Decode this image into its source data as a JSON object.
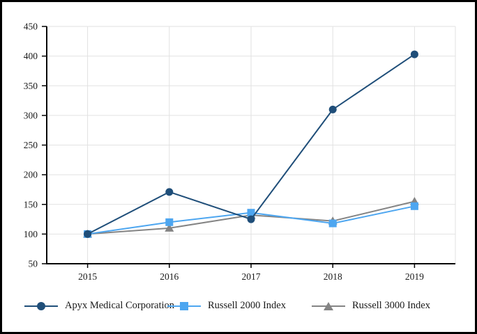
{
  "figure": {
    "background_color": "#ffffff",
    "border_color": "#000000",
    "text_color": "#1a1a1a",
    "gridline_color": "#e2e2e2",
    "axis_color": "#000000"
  },
  "chart_data": {
    "type": "line",
    "title": "",
    "categories": [
      "2015",
      "2016",
      "2017",
      "2018",
      "2019"
    ],
    "series": [
      {
        "name": "Apyx Medical Corporation",
        "marker": "circle",
        "color": "#1f4e79",
        "values": [
          100,
          171,
          125,
          310,
          403
        ]
      },
      {
        "name": "Russell 2000 Index",
        "marker": "square",
        "color": "#4da6f0",
        "values": [
          100,
          120,
          136,
          118,
          147
        ]
      },
      {
        "name": "Russell 3000 Index",
        "marker": "triangle",
        "color": "#848484",
        "values": [
          100,
          110,
          132,
          122,
          155
        ]
      }
    ],
    "xlabel": "",
    "ylabel": "",
    "ylim": [
      50,
      450
    ],
    "ytick_step": 50,
    "y_tick_labels": [
      "450",
      "400",
      "350",
      "300",
      "250",
      "200",
      "150",
      "100",
      "50"
    ],
    "grid": true,
    "legend_position": "bottom"
  }
}
